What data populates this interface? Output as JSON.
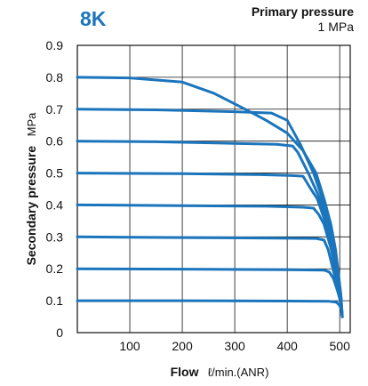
{
  "chart_data": {
    "type": "line",
    "tag": "8K",
    "primary_pressure_label": "Primary pressure",
    "primary_pressure_value": "1 MPa",
    "xlabel_bold": "Flow",
    "xlabel_unit": "ℓ/min.(ANR)",
    "ylabel_bold": "Secondary pressure",
    "ylabel_unit": "MPa",
    "xlim": [
      0,
      520
    ],
    "ylim": [
      0,
      0.9
    ],
    "x_ticks": [
      100,
      200,
      300,
      400,
      500
    ],
    "y_ticks": [
      0,
      0.1,
      0.2,
      0.3,
      0.4,
      0.5,
      0.6,
      0.7,
      0.8,
      0.9
    ],
    "grid": true,
    "line_color": "#1b75bc",
    "series": [
      {
        "values": [
          [
            0,
            0.8
          ],
          [
            100,
            0.798
          ],
          [
            200,
            0.785
          ],
          [
            260,
            0.75
          ],
          [
            320,
            0.7
          ],
          [
            360,
            0.665
          ],
          [
            400,
            0.625
          ],
          [
            430,
            0.57
          ],
          [
            455,
            0.5
          ],
          [
            470,
            0.42
          ],
          [
            483,
            0.34
          ],
          [
            492,
            0.26
          ],
          [
            498,
            0.18
          ],
          [
            502,
            0.12
          ],
          [
            505,
            0.05
          ]
        ]
      },
      {
        "values": [
          [
            0,
            0.7
          ],
          [
            150,
            0.698
          ],
          [
            300,
            0.692
          ],
          [
            370,
            0.688
          ],
          [
            400,
            0.665
          ],
          [
            425,
            0.59
          ],
          [
            450,
            0.5
          ],
          [
            467,
            0.42
          ],
          [
            480,
            0.34
          ],
          [
            490,
            0.26
          ],
          [
            497,
            0.18
          ],
          [
            502,
            0.12
          ],
          [
            505,
            0.05
          ]
        ]
      },
      {
        "values": [
          [
            0,
            0.6
          ],
          [
            150,
            0.598
          ],
          [
            300,
            0.593
          ],
          [
            380,
            0.59
          ],
          [
            410,
            0.585
          ],
          [
            420,
            0.565
          ],
          [
            440,
            0.5
          ],
          [
            462,
            0.42
          ],
          [
            477,
            0.34
          ],
          [
            488,
            0.26
          ],
          [
            496,
            0.18
          ],
          [
            502,
            0.12
          ],
          [
            505,
            0.05
          ]
        ]
      },
      {
        "values": [
          [
            0,
            0.5
          ],
          [
            200,
            0.498
          ],
          [
            350,
            0.495
          ],
          [
            410,
            0.492
          ],
          [
            430,
            0.49
          ],
          [
            445,
            0.45
          ],
          [
            457,
            0.42
          ],
          [
            474,
            0.34
          ],
          [
            486,
            0.26
          ],
          [
            495,
            0.18
          ],
          [
            501,
            0.12
          ],
          [
            505,
            0.05
          ]
        ]
      },
      {
        "values": [
          [
            0,
            0.4
          ],
          [
            200,
            0.398
          ],
          [
            360,
            0.396
          ],
          [
            430,
            0.393
          ],
          [
            450,
            0.39
          ],
          [
            460,
            0.37
          ],
          [
            470,
            0.34
          ],
          [
            484,
            0.26
          ],
          [
            494,
            0.18
          ],
          [
            501,
            0.12
          ],
          [
            505,
            0.05
          ]
        ]
      },
      {
        "values": [
          [
            0,
            0.3
          ],
          [
            200,
            0.298
          ],
          [
            380,
            0.296
          ],
          [
            455,
            0.295
          ],
          [
            470,
            0.29
          ],
          [
            478,
            0.26
          ],
          [
            490,
            0.18
          ],
          [
            499,
            0.12
          ],
          [
            505,
            0.05
          ]
        ]
      },
      {
        "values": [
          [
            0,
            0.2
          ],
          [
            200,
            0.199
          ],
          [
            400,
            0.197
          ],
          [
            470,
            0.196
          ],
          [
            480,
            0.19
          ],
          [
            488,
            0.17
          ],
          [
            496,
            0.13
          ],
          [
            501,
            0.1
          ],
          [
            505,
            0.05
          ]
        ]
      },
      {
        "values": [
          [
            0,
            0.1
          ],
          [
            200,
            0.1
          ],
          [
            400,
            0.099
          ],
          [
            480,
            0.098
          ],
          [
            494,
            0.095
          ],
          [
            500,
            0.085
          ],
          [
            503,
            0.07
          ],
          [
            505,
            0.05
          ]
        ]
      }
    ]
  }
}
